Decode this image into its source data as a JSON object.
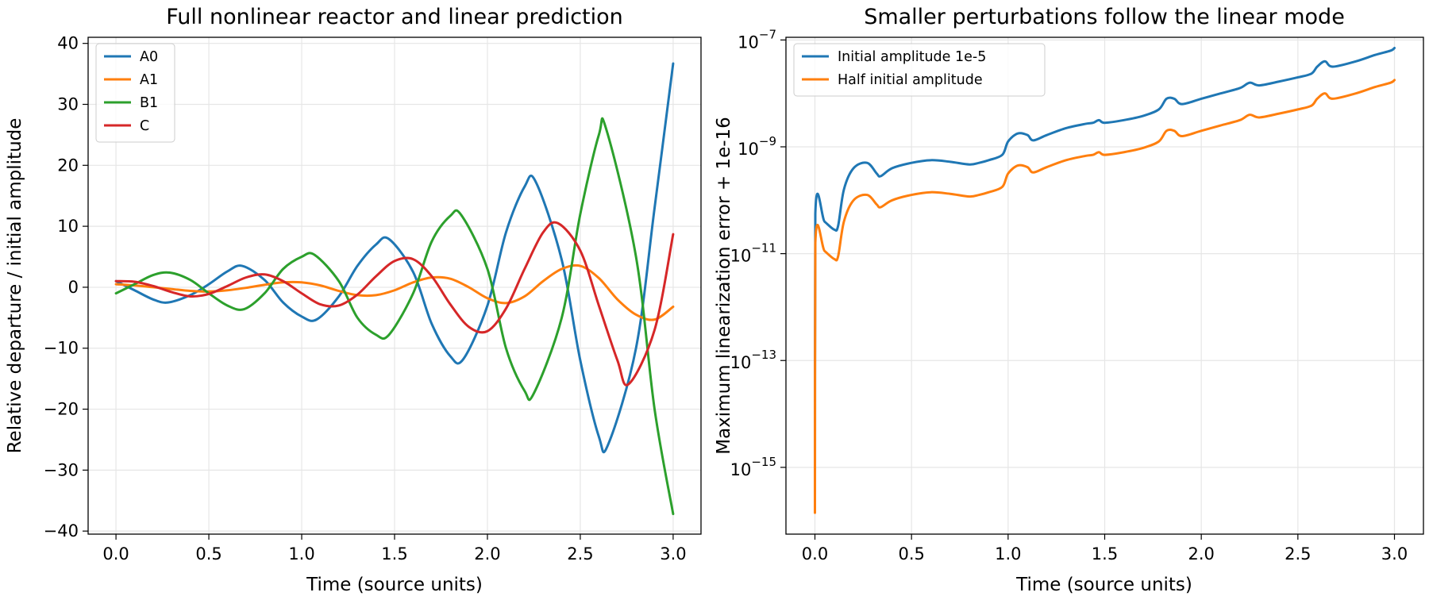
{
  "chart_data": [
    {
      "type": "line",
      "title": "Full nonlinear reactor and linear prediction",
      "xlabel": "Time (source units)",
      "ylabel": "Relative departure / initial amplitude",
      "xlim": [
        -0.15,
        3.15
      ],
      "ylim": [
        -40.5,
        41
      ],
      "yscale": "linear",
      "grid": true,
      "legend_position": "upper-left",
      "xticks": [
        0.0,
        0.5,
        1.0,
        1.5,
        2.0,
        2.5,
        3.0
      ],
      "xtick_labels": [
        "0.0",
        "0.5",
        "1.0",
        "1.5",
        "2.0",
        "2.5",
        "3.0"
      ],
      "yticks": [
        40,
        30,
        20,
        10,
        0,
        -10,
        -20,
        -30,
        -40
      ],
      "ytick_labels": [
        "40",
        "30",
        "20",
        "10",
        "0",
        "−10",
        "−20",
        "−30",
        "−40"
      ],
      "series": [
        {
          "name": "A0",
          "color": "#1f77b4",
          "x": [
            0.0,
            0.1,
            0.2,
            0.28,
            0.4,
            0.5,
            0.6,
            0.68,
            0.8,
            0.9,
            1.0,
            1.08,
            1.2,
            1.3,
            1.4,
            1.47,
            1.6,
            1.7,
            1.8,
            1.87,
            2.0,
            2.1,
            2.2,
            2.26,
            2.4,
            2.5,
            2.6,
            2.65,
            2.8,
            2.9,
            3.0
          ],
          "y": [
            1.0,
            -0.5,
            -2.0,
            -2.5,
            -1.3,
            0.5,
            2.6,
            3.5,
            1.2,
            -2.5,
            -4.8,
            -5.3,
            -1.5,
            3.5,
            7.0,
            7.9,
            2.5,
            -6.0,
            -11.3,
            -11.8,
            -3.0,
            9.0,
            16.5,
            17.3,
            4.5,
            -12.0,
            -24.5,
            -25.8,
            -10.0,
            13.0,
            36.7
          ]
        },
        {
          "name": "A1",
          "color": "#ff7f0e",
          "x": [
            0.0,
            0.1,
            0.2,
            0.3,
            0.4,
            0.5,
            0.6,
            0.7,
            0.8,
            0.9,
            1.0,
            1.1,
            1.2,
            1.3,
            1.4,
            1.5,
            1.6,
            1.7,
            1.8,
            1.9,
            2.0,
            2.1,
            2.2,
            2.3,
            2.4,
            2.5,
            2.6,
            2.7,
            2.8,
            2.9,
            3.0
          ],
          "y": [
            0.5,
            0.3,
            0.0,
            -0.3,
            -0.6,
            -0.7,
            -0.5,
            -0.1,
            0.4,
            0.8,
            0.8,
            0.3,
            -0.6,
            -1.3,
            -1.3,
            -0.5,
            0.8,
            1.6,
            1.4,
            0.0,
            -1.8,
            -2.6,
            -1.5,
            1.0,
            3.0,
            3.5,
            1.5,
            -2.0,
            -4.5,
            -5.3,
            -3.2
          ]
        },
        {
          "name": "B1",
          "color": "#2ca02c",
          "x": [
            0.0,
            0.1,
            0.2,
            0.29,
            0.4,
            0.5,
            0.6,
            0.69,
            0.8,
            0.9,
            1.0,
            1.07,
            1.2,
            1.3,
            1.4,
            1.47,
            1.6,
            1.7,
            1.8,
            1.86,
            2.0,
            2.1,
            2.2,
            2.25,
            2.4,
            2.5,
            2.6,
            2.64,
            2.8,
            2.9,
            3.0
          ],
          "y": [
            -1.0,
            0.5,
            2.0,
            2.4,
            1.2,
            -1.0,
            -3.0,
            -3.6,
            -1.0,
            3.0,
            5.0,
            5.3,
            1.0,
            -5.0,
            -7.8,
            -7.8,
            -1.0,
            7.5,
            11.7,
            11.8,
            3.0,
            -10.0,
            -17.0,
            -17.4,
            -5.0,
            12.0,
            25.0,
            25.9,
            5.0,
            -20.0,
            -37.2
          ]
        },
        {
          "name": "C",
          "color": "#d62728",
          "x": [
            0.0,
            0.1,
            0.2,
            0.3,
            0.4,
            0.5,
            0.6,
            0.7,
            0.8,
            0.9,
            1.0,
            1.1,
            1.2,
            1.3,
            1.4,
            1.5,
            1.6,
            1.7,
            1.8,
            1.9,
            2.0,
            2.1,
            2.2,
            2.3,
            2.38,
            2.5,
            2.6,
            2.7,
            2.76,
            2.9,
            3.0
          ],
          "y": [
            1.0,
            0.9,
            0.2,
            -0.8,
            -1.5,
            -1.1,
            0.2,
            1.6,
            2.1,
            1.0,
            -1.0,
            -2.8,
            -3.0,
            -1.2,
            1.8,
            4.3,
            4.6,
            1.8,
            -2.8,
            -6.5,
            -7.2,
            -3.5,
            3.0,
            9.0,
            10.5,
            6.0,
            -3.0,
            -12.0,
            -15.9,
            -7.0,
            8.7
          ]
        }
      ]
    },
    {
      "type": "line",
      "title": "Smaller perturbations follow the linear mode",
      "xlabel": "Time (source units)",
      "ylabel": "Maximum linearization error + 1e-16",
      "xlim": [
        -0.15,
        3.15
      ],
      "ylim_log10": [
        -16.25,
        -6.95
      ],
      "yscale": "log",
      "grid": true,
      "legend_position": "upper-left",
      "xticks": [
        0.0,
        0.5,
        1.0,
        1.5,
        2.0,
        2.5,
        3.0
      ],
      "xtick_labels": [
        "0.0",
        "0.5",
        "1.0",
        "1.5",
        "2.0",
        "2.5",
        "3.0"
      ],
      "yticks_log10": [
        -7,
        -9,
        -11,
        -13,
        -15
      ],
      "ytick_labels": [
        {
          "base": "10",
          "exp": "−7"
        },
        {
          "base": "10",
          "exp": "−9"
        },
        {
          "base": "10",
          "exp": "−11"
        },
        {
          "base": "10",
          "exp": "−13"
        },
        {
          "base": "10",
          "exp": "−15"
        }
      ],
      "series": [
        {
          "name": "Initial amplitude 1e-5",
          "color": "#1f77b4",
          "x": [
            0.0,
            0.002,
            0.05,
            0.1,
            0.12,
            0.15,
            0.2,
            0.27,
            0.32,
            0.34,
            0.4,
            0.5,
            0.6,
            0.7,
            0.8,
            0.85,
            0.9,
            0.97,
            1.0,
            1.05,
            1.1,
            1.13,
            1.2,
            1.3,
            1.4,
            1.44,
            1.47,
            1.5,
            1.6,
            1.7,
            1.78,
            1.82,
            1.86,
            1.9,
            2.0,
            2.1,
            2.2,
            2.25,
            2.3,
            2.4,
            2.5,
            2.57,
            2.6,
            2.64,
            2.68,
            2.8,
            2.9,
            2.98,
            3.0
          ],
          "y": [
            -15.75,
            -10.25,
            -10.4,
            -10.55,
            -10.48,
            -9.8,
            -9.4,
            -9.3,
            -9.5,
            -9.55,
            -9.4,
            -9.3,
            -9.25,
            -9.28,
            -9.33,
            -9.3,
            -9.25,
            -9.15,
            -8.9,
            -8.75,
            -8.78,
            -8.88,
            -8.78,
            -8.65,
            -8.57,
            -8.55,
            -8.5,
            -8.55,
            -8.5,
            -8.42,
            -8.3,
            -8.1,
            -8.1,
            -8.2,
            -8.1,
            -8.0,
            -7.9,
            -7.8,
            -7.85,
            -7.78,
            -7.7,
            -7.63,
            -7.5,
            -7.4,
            -7.5,
            -7.4,
            -7.28,
            -7.2,
            -7.15
          ]
        },
        {
          "name": "Half initial amplitude",
          "color": "#ff7f0e",
          "x": [
            0.0,
            0.002,
            0.05,
            0.1,
            0.12,
            0.15,
            0.2,
            0.27,
            0.32,
            0.34,
            0.4,
            0.5,
            0.6,
            0.7,
            0.8,
            0.85,
            0.9,
            0.97,
            1.0,
            1.05,
            1.1,
            1.13,
            1.2,
            1.3,
            1.4,
            1.44,
            1.47,
            1.5,
            1.6,
            1.7,
            1.78,
            1.82,
            1.86,
            1.9,
            2.0,
            2.1,
            2.2,
            2.25,
            2.3,
            2.4,
            2.5,
            2.57,
            2.6,
            2.64,
            2.68,
            2.8,
            2.9,
            2.98,
            3.0
          ],
          "y": [
            -15.85,
            -10.8,
            -10.95,
            -11.1,
            -11.05,
            -10.4,
            -10.0,
            -9.9,
            -10.08,
            -10.13,
            -10.0,
            -9.9,
            -9.85,
            -9.88,
            -9.93,
            -9.9,
            -9.85,
            -9.75,
            -9.5,
            -9.35,
            -9.38,
            -9.48,
            -9.38,
            -9.25,
            -9.17,
            -9.15,
            -9.1,
            -9.15,
            -9.1,
            -9.02,
            -8.9,
            -8.7,
            -8.7,
            -8.8,
            -8.7,
            -8.6,
            -8.5,
            -8.4,
            -8.45,
            -8.38,
            -8.3,
            -8.23,
            -8.1,
            -8.0,
            -8.1,
            -8.0,
            -7.88,
            -7.8,
            -7.75
          ]
        }
      ]
    }
  ]
}
